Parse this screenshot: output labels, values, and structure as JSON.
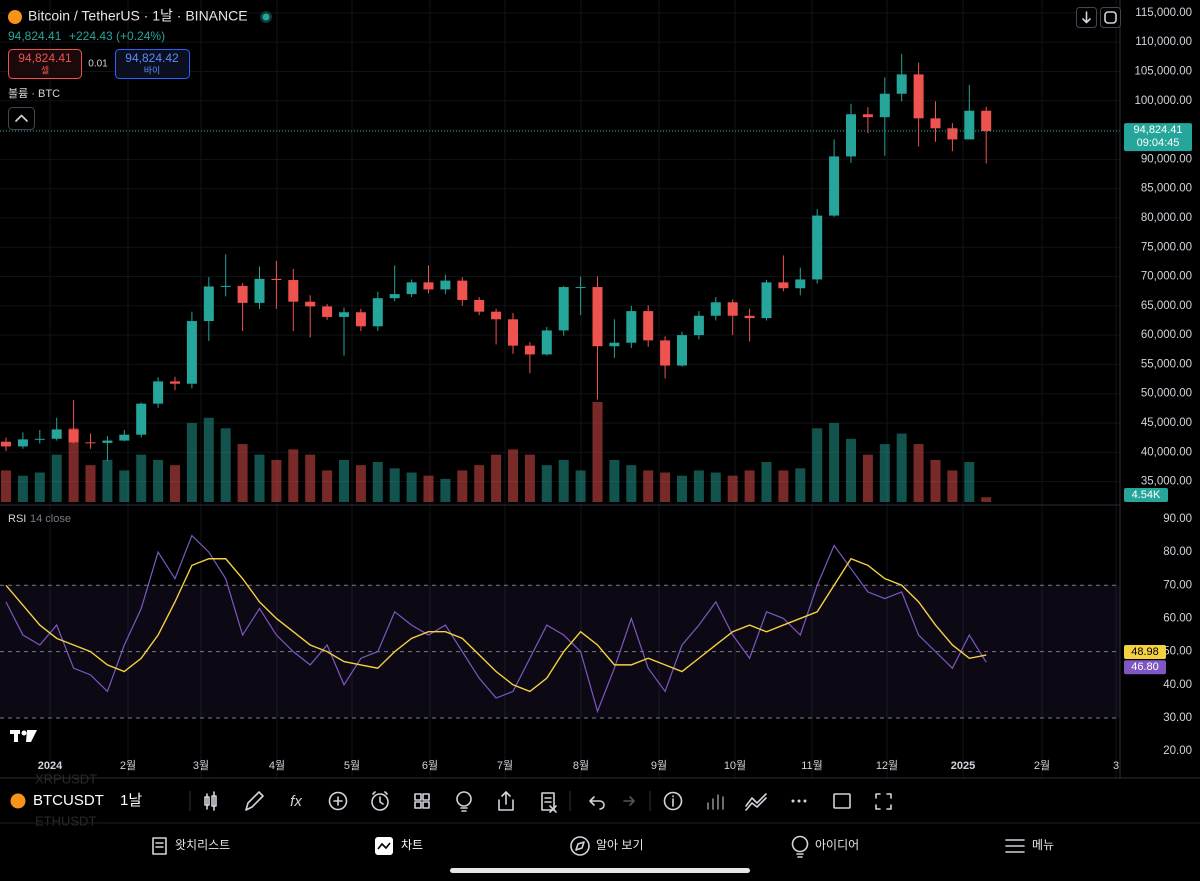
{
  "header": {
    "symbol_title": "Bitcoin / TetherUS · 1날 · BINANCE",
    "price": "94,824.41",
    "change": "+224.43 (+0.24%)",
    "sell": {
      "price": "94,824.41",
      "label": "셀"
    },
    "spread": "0.01",
    "buy": {
      "price": "94,824.42",
      "label": "바이"
    },
    "volume_label": "볼륨 · BTC"
  },
  "chart_data": [
    {
      "type": "candlestick",
      "up_color": "#26a69a",
      "down_color": "#ef5350",
      "grid": true,
      "open": [
        41800,
        41000,
        42200,
        42300,
        43900,
        41700,
        41600,
        42000,
        43000,
        48300,
        52100,
        51700,
        62400,
        68300,
        68400,
        65500,
        69600,
        69400,
        65700,
        64900,
        63100,
        63900,
        61500,
        66300,
        67000,
        69000,
        67800,
        69300,
        66000,
        64000,
        62700,
        58200,
        56700,
        60800,
        68200,
        68200,
        58100,
        58700,
        64100,
        59100,
        54800,
        60000,
        63300,
        65600,
        63300,
        62900,
        69000,
        68000,
        69500,
        80400,
        90500,
        97700,
        97200,
        101200,
        104500,
        97000,
        95300,
        93400,
        98300
      ],
      "high": [
        42500,
        43400,
        43800,
        45900,
        48900,
        43200,
        42800,
        43800,
        48500,
        52800,
        52900,
        64000,
        69900,
        73800,
        68900,
        71700,
        72700,
        71300,
        66800,
        65300,
        64700,
        64500,
        67400,
        71900,
        69500,
        71900,
        70300,
        69900,
        66500,
        64500,
        63800,
        58800,
        61400,
        68400,
        70000,
        70000,
        62700,
        65000,
        65100,
        59800,
        60600,
        64100,
        66500,
        66100,
        64500,
        69400,
        73600,
        71500,
        81500,
        93400,
        99500,
        98900,
        104000,
        108000,
        106500,
        99900,
        96200,
        102700,
        99000
      ],
      "low": [
        40200,
        40600,
        41500,
        42000,
        41500,
        40600,
        38500,
        41900,
        42500,
        47600,
        50600,
        50900,
        59000,
        66600,
        60700,
        64500,
        64500,
        60700,
        59600,
        62600,
        56500,
        60700,
        60700,
        65800,
        66500,
        67100,
        67000,
        65000,
        63400,
        58400,
        56800,
        53500,
        56500,
        59900,
        63400,
        49000,
        56100,
        57800,
        58000,
        52600,
        54600,
        59300,
        62500,
        60000,
        58900,
        62500,
        67500,
        66800,
        68800,
        80200,
        89400,
        94500,
        90600,
        99900,
        92200,
        93000,
        91400,
        93400,
        89300
      ],
      "close": [
        41000,
        42200,
        42300,
        43900,
        41700,
        41600,
        42000,
        43000,
        48300,
        52100,
        51700,
        62400,
        68300,
        68400,
        65500,
        69600,
        69400,
        65700,
        64900,
        63100,
        63900,
        61500,
        66300,
        67000,
        69000,
        67800,
        69300,
        66000,
        64000,
        62700,
        58200,
        56700,
        60800,
        68200,
        68200,
        58100,
        58700,
        64100,
        59100,
        54800,
        60000,
        63300,
        65600,
        63300,
        62900,
        69000,
        68000,
        69500,
        80400,
        90500,
        97700,
        97200,
        101200,
        104500,
        97000,
        95300,
        93400,
        98300,
        94824.41
      ],
      "last_price_label": "94,824.41",
      "last_time": "09:04:45",
      "ylim": [
        31000,
        117200
      ],
      "yticks": [
        {
          "value": 115000,
          "label": "115,000.00"
        },
        {
          "value": 110000,
          "label": "110,000.00"
        },
        {
          "value": 105000,
          "label": "105,000.00"
        },
        {
          "value": 100000,
          "label": "100,000.00"
        },
        {
          "value": 95000,
          "label": "95,000.00"
        },
        {
          "value": 90000,
          "label": "90,000.00"
        },
        {
          "value": 85000,
          "label": "85,000.00"
        },
        {
          "value": 80000,
          "label": "80,000.00"
        },
        {
          "value": 75000,
          "label": "75,000.00"
        },
        {
          "value": 70000,
          "label": "70,000.00"
        },
        {
          "value": 65000,
          "label": "65,000.00"
        },
        {
          "value": 60000,
          "label": "60,000.00"
        },
        {
          "value": 55000,
          "label": "55,000.00"
        },
        {
          "value": 50000,
          "label": "50,000.00"
        },
        {
          "value": 45000,
          "label": "45,000.00"
        },
        {
          "value": 40000,
          "label": "40,000.00"
        },
        {
          "value": 35000,
          "label": "35,000.00"
        }
      ]
    },
    {
      "type": "bar",
      "values": [
        30000,
        25000,
        28000,
        45000,
        70000,
        35000,
        40000,
        30000,
        45000,
        40000,
        35000,
        75000,
        80000,
        70000,
        55000,
        45000,
        40000,
        50000,
        45000,
        30000,
        40000,
        35000,
        38000,
        32000,
        28000,
        25000,
        22000,
        30000,
        35000,
        45000,
        50000,
        45000,
        35000,
        40000,
        30000,
        95000,
        40000,
        35000,
        30000,
        28000,
        25000,
        30000,
        28000,
        25000,
        30000,
        38000,
        30000,
        32000,
        70000,
        75000,
        60000,
        45000,
        55000,
        65000,
        55000,
        40000,
        30000,
        38000,
        4540
      ],
      "value_labels": [
        null,
        null,
        null,
        null,
        null,
        null,
        null,
        null,
        null,
        null,
        null,
        null,
        null,
        null,
        null,
        null,
        null,
        null,
        null,
        null,
        null,
        null,
        null,
        null,
        null,
        null,
        null,
        null,
        null,
        null,
        null,
        null,
        null,
        null,
        null,
        null,
        null,
        null,
        null,
        null,
        null,
        null,
        null,
        null,
        null,
        null,
        null,
        null,
        null,
        null,
        null,
        null,
        null,
        null,
        null,
        null,
        null,
        null,
        "4.54K"
      ]
    },
    {
      "type": "line",
      "title": "RSI",
      "params": "14 close",
      "series": [
        {
          "color": "#7e57c2",
          "values": [
            65,
            55,
            52,
            58,
            45,
            43,
            38,
            52,
            63,
            80,
            72,
            85,
            80,
            72,
            55,
            63,
            55,
            50,
            46,
            52,
            40,
            48,
            50,
            62,
            58,
            55,
            58,
            50,
            42,
            36,
            38,
            48,
            58,
            55,
            50,
            32,
            45,
            60,
            45,
            38,
            52,
            58,
            65,
            55,
            48,
            62,
            60,
            55,
            70,
            82,
            75,
            68,
            66,
            68,
            55,
            50,
            45,
            55,
            46.8
          ],
          "value_labels": [
            null,
            null,
            null,
            null,
            null,
            null,
            null,
            null,
            null,
            null,
            null,
            null,
            null,
            null,
            null,
            null,
            null,
            null,
            null,
            null,
            null,
            null,
            null,
            null,
            null,
            null,
            null,
            null,
            null,
            null,
            null,
            null,
            null,
            null,
            null,
            null,
            null,
            null,
            null,
            null,
            null,
            null,
            null,
            null,
            null,
            null,
            null,
            null,
            null,
            null,
            null,
            null,
            null,
            null,
            null,
            null,
            null,
            null,
            "46.80"
          ]
        },
        {
          "color": "#f5d142",
          "values": [
            70,
            64,
            58,
            54,
            52,
            50,
            46,
            44,
            48,
            55,
            65,
            76,
            78,
            78,
            72,
            65,
            60,
            56,
            52,
            50,
            47,
            46,
            45,
            50,
            54,
            56,
            56,
            54,
            49,
            44,
            40,
            38,
            42,
            50,
            56,
            52,
            46,
            46,
            48,
            46,
            44,
            48,
            52,
            56,
            58,
            56,
            58,
            60,
            62,
            70,
            78,
            76,
            72,
            70,
            65,
            58,
            52,
            48,
            48.98
          ]
        }
      ],
      "levels": [
        70,
        50,
        30
      ],
      "ylim": [
        11.9,
        94.2
      ],
      "yticks": [
        {
          "value": 90,
          "label": "90.00"
        },
        {
          "value": 80,
          "label": "80.00"
        },
        {
          "value": 70,
          "label": "70.00"
        },
        {
          "value": 60,
          "label": "60.00"
        },
        {
          "value": 50,
          "label": "50.00"
        },
        {
          "value": 40,
          "label": "40.00"
        },
        {
          "value": 30,
          "label": "30.00"
        },
        {
          "value": 20,
          "label": "20.00"
        }
      ]
    }
  ],
  "time_axis": [
    "2024",
    "2월",
    "3월",
    "4월",
    "5월",
    "6월",
    "7월",
    "8월",
    "9월",
    "10월",
    "11월",
    "12월",
    "2025",
    "2월",
    "3"
  ],
  "toolbar": {
    "symbol": "BTCUSDT",
    "interval": "1날",
    "ghost_above": "XRPUSDT",
    "ghost_below": "ETHUSDT"
  },
  "tabs": [
    "왓치리스트",
    "차트",
    "알아 보기",
    "아이디어",
    "메뉴"
  ]
}
